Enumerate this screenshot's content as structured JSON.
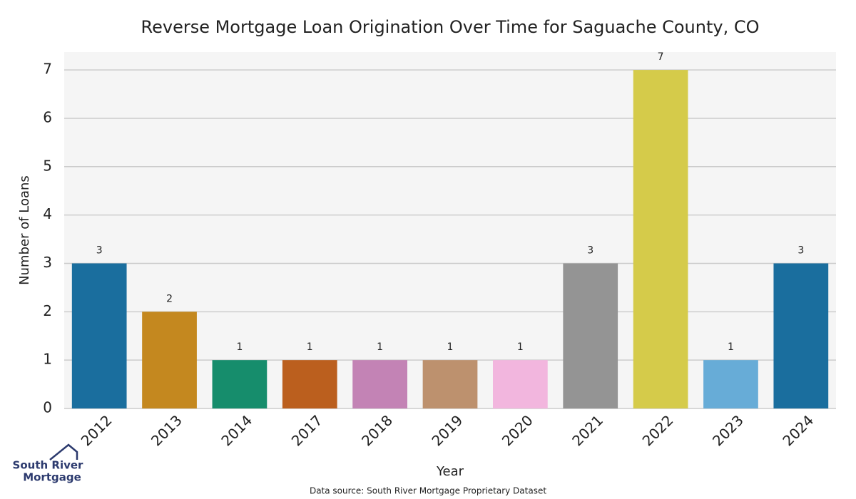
{
  "chart_data": {
    "type": "bar",
    "title": "Reverse Mortgage Loan Origination Over Time for Saguache County, CO",
    "x_label": "Year",
    "y_label": "Number of Loans",
    "categories": [
      "2012",
      "2013",
      "2014",
      "2017",
      "2018",
      "2019",
      "2020",
      "2021",
      "2022",
      "2023",
      "2024"
    ],
    "values": [
      3,
      2,
      1,
      1,
      1,
      1,
      1,
      3,
      7,
      1,
      3
    ],
    "colors": [
      "#1a6e9e",
      "#c4881f",
      "#168d6c",
      "#bb5f1e",
      "#c383b5",
      "#bd916e",
      "#f2b6de",
      "#949494",
      "#d5cb4a",
      "#67acd7",
      "#1a6e9e"
    ],
    "ylim": [
      0,
      7.37
    ],
    "yticks": [
      0,
      1,
      2,
      3,
      4,
      5,
      6,
      7
    ],
    "grid": true
  },
  "source": "Data source: South River Mortgage Proprietary Dataset",
  "logo": {
    "line1": "South River",
    "line2": "Mortgage"
  }
}
